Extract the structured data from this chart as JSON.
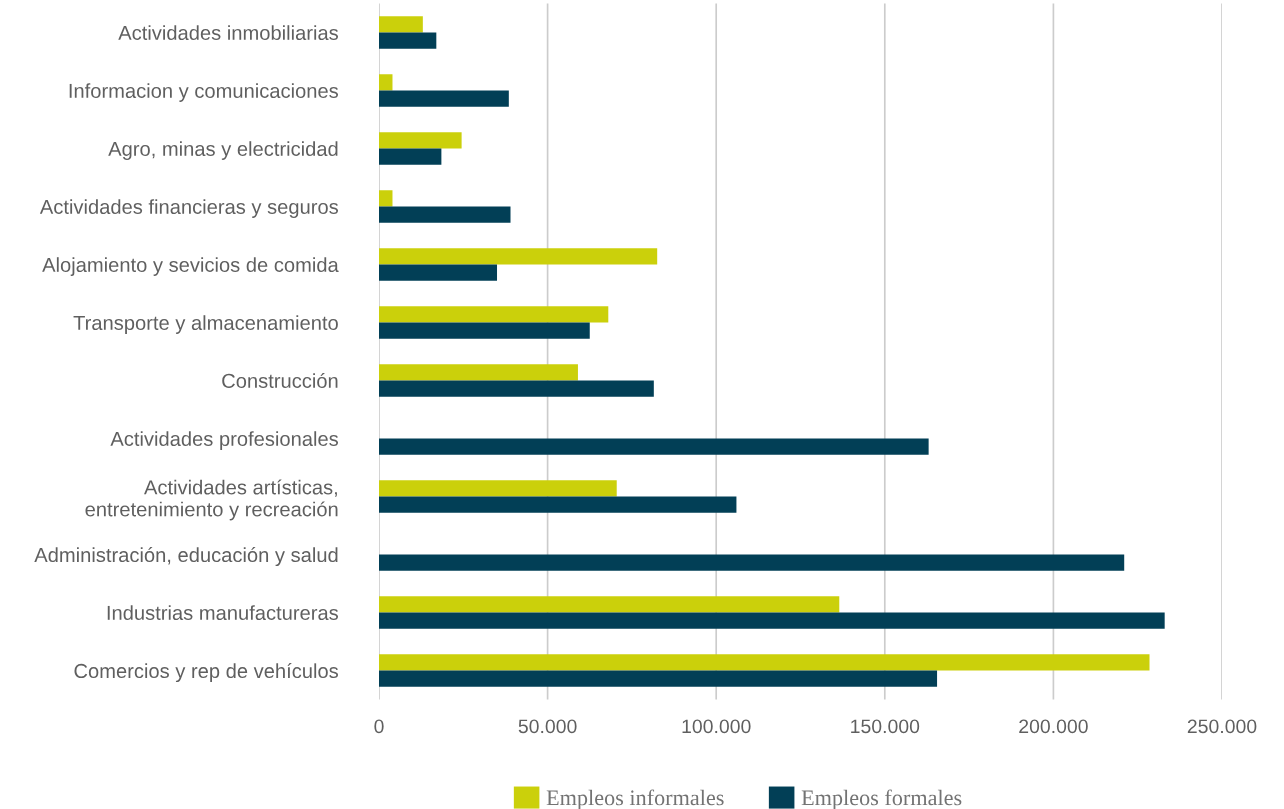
{
  "chart_data": {
    "type": "bar",
    "orientation": "horizontal",
    "categories": [
      "Actividades inmobiliarias",
      "Informacion y comunicaciones",
      "Agro, minas y electricidad",
      "Actividades financieras y seguros",
      "Alojamiento y sevicios de comida",
      "Transporte y almacenamiento",
      "Construcción",
      "Actividades profesionales",
      "Actividades artísticas,\nentretenimiento y recreación",
      "Administración, educación y salud",
      "Industrias manufactureras",
      "Comercios y rep de vehículos"
    ],
    "series": [
      {
        "name": "Empleos informales",
        "color": "#cbd00b",
        "values": [
          13000,
          4000,
          24500,
          4000,
          82500,
          68000,
          59000,
          null,
          70500,
          null,
          136500,
          228500
        ]
      },
      {
        "name": "Empleos formales",
        "color": "#023f56",
        "values": [
          17000,
          38500,
          18500,
          39000,
          35000,
          62500,
          81500,
          163000,
          106000,
          221000,
          233000,
          165500
        ]
      }
    ],
    "xlim": [
      0,
      250000
    ],
    "xticks": [
      0,
      {
        "value": 50000,
        "label": "50.000"
      },
      {
        "value": 100000,
        "label": "100.000"
      },
      {
        "value": 150000,
        "label": "150.000"
      },
      {
        "value": 200000,
        "label": "200.000"
      },
      {
        "value": 250000,
        "label": "250.000"
      }
    ],
    "grid": "x",
    "legend": "bottom"
  }
}
